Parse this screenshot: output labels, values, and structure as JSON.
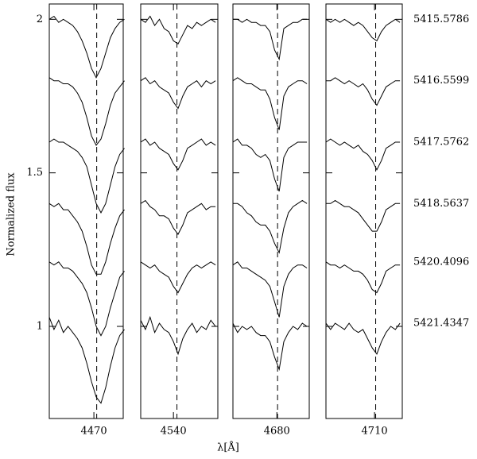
{
  "xlabel": "λ[Å]",
  "ylabel": "Normalized flux",
  "chart_data": [
    {
      "type": "line",
      "color": "#000000",
      "marker_x": 4471.2,
      "xlim": [
        4451,
        4482.5
      ],
      "xticks": [
        4470
      ],
      "ylim": [
        0.7,
        2.05
      ],
      "yticks": [
        1,
        1.5,
        2
      ],
      "x": [
        4451,
        4453,
        4455,
        4457,
        4459,
        4461,
        4463,
        4465,
        4467,
        4469,
        4471,
        4473,
        4475,
        4477,
        4479,
        4481,
        4483
      ],
      "series": [
        {
          "values": [
            2.0,
            2.01,
            1.99,
            2.0,
            1.99,
            1.98,
            1.96,
            1.93,
            1.89,
            1.84,
            1.81,
            1.84,
            1.89,
            1.94,
            1.97,
            1.99,
            2.0
          ]
        },
        {
          "values": [
            1.81,
            1.8,
            1.8,
            1.79,
            1.79,
            1.78,
            1.76,
            1.73,
            1.68,
            1.62,
            1.59,
            1.61,
            1.66,
            1.72,
            1.76,
            1.78,
            1.8
          ]
        },
        {
          "values": [
            1.6,
            1.61,
            1.6,
            1.6,
            1.59,
            1.58,
            1.57,
            1.55,
            1.52,
            1.46,
            1.4,
            1.37,
            1.4,
            1.46,
            1.52,
            1.56,
            1.58
          ]
        },
        {
          "values": [
            1.4,
            1.39,
            1.4,
            1.38,
            1.38,
            1.36,
            1.34,
            1.31,
            1.26,
            1.2,
            1.17,
            1.17,
            1.21,
            1.27,
            1.32,
            1.36,
            1.38
          ]
        },
        {
          "values": [
            1.21,
            1.2,
            1.21,
            1.19,
            1.19,
            1.18,
            1.16,
            1.14,
            1.11,
            1.06,
            1.0,
            0.97,
            1.0,
            1.06,
            1.11,
            1.16,
            1.18
          ]
        },
        {
          "values": [
            1.03,
            0.99,
            1.02,
            0.98,
            1.0,
            0.98,
            0.96,
            0.93,
            0.88,
            0.82,
            0.77,
            0.75,
            0.8,
            0.87,
            0.93,
            0.97,
            0.99
          ]
        }
      ]
    },
    {
      "type": "line",
      "color": "#000000",
      "marker_x": 4541.5,
      "xlim": [
        4526,
        4559
      ],
      "xticks": [
        4540
      ],
      "ylim": [
        0.7,
        2.05
      ],
      "x": [
        4526,
        4528,
        4530,
        4532,
        4534,
        4536,
        4538,
        4540,
        4542,
        4544,
        4546,
        4548,
        4550,
        4552,
        4554,
        4556,
        4558
      ],
      "series": [
        {
          "values": [
            2.0,
            1.99,
            2.01,
            1.98,
            2.0,
            1.97,
            1.96,
            1.93,
            1.92,
            1.95,
            1.98,
            1.97,
            1.99,
            1.98,
            1.99,
            2.0,
            1.99
          ]
        },
        {
          "values": [
            1.8,
            1.81,
            1.79,
            1.8,
            1.78,
            1.77,
            1.76,
            1.73,
            1.71,
            1.75,
            1.78,
            1.79,
            1.8,
            1.78,
            1.8,
            1.79,
            1.8
          ]
        },
        {
          "values": [
            1.6,
            1.61,
            1.59,
            1.6,
            1.58,
            1.57,
            1.56,
            1.53,
            1.51,
            1.54,
            1.58,
            1.59,
            1.6,
            1.61,
            1.59,
            1.6,
            1.59
          ]
        },
        {
          "values": [
            1.4,
            1.41,
            1.39,
            1.38,
            1.36,
            1.36,
            1.35,
            1.32,
            1.3,
            1.33,
            1.37,
            1.38,
            1.39,
            1.4,
            1.38,
            1.39,
            1.39
          ]
        },
        {
          "values": [
            1.21,
            1.2,
            1.19,
            1.2,
            1.18,
            1.17,
            1.16,
            1.13,
            1.11,
            1.14,
            1.17,
            1.19,
            1.2,
            1.19,
            1.2,
            1.21,
            1.2
          ]
        },
        {
          "values": [
            1.02,
            0.99,
            1.03,
            0.98,
            1.01,
            0.99,
            0.98,
            0.95,
            0.91,
            0.96,
            0.99,
            1.01,
            0.98,
            1.0,
            0.99,
            1.02,
            1.0
          ]
        }
      ]
    },
    {
      "type": "line",
      "color": "#000000",
      "marker_x": 4680.3,
      "xlim": [
        4661,
        4694
      ],
      "xticks": [
        4680
      ],
      "ylim": [
        0.7,
        2.05
      ],
      "x": [
        4661,
        4663,
        4665,
        4667,
        4669,
        4671,
        4673,
        4675,
        4677,
        4679,
        4681,
        4683,
        4685,
        4687,
        4689,
        4691,
        4693
      ],
      "series": [
        {
          "values": [
            2.0,
            2.0,
            1.99,
            2.0,
            1.99,
            1.99,
            1.98,
            1.98,
            1.96,
            1.9,
            1.87,
            1.97,
            1.98,
            1.99,
            1.99,
            2.0,
            2.0
          ]
        },
        {
          "values": [
            1.8,
            1.81,
            1.8,
            1.79,
            1.79,
            1.78,
            1.77,
            1.77,
            1.74,
            1.68,
            1.64,
            1.75,
            1.78,
            1.79,
            1.8,
            1.8,
            1.79
          ]
        },
        {
          "values": [
            1.6,
            1.61,
            1.59,
            1.59,
            1.58,
            1.56,
            1.55,
            1.56,
            1.54,
            1.48,
            1.44,
            1.55,
            1.58,
            1.59,
            1.6,
            1.6,
            1.6
          ]
        },
        {
          "values": [
            1.4,
            1.4,
            1.39,
            1.37,
            1.36,
            1.34,
            1.33,
            1.33,
            1.31,
            1.27,
            1.24,
            1.32,
            1.37,
            1.39,
            1.4,
            1.41,
            1.4
          ]
        },
        {
          "values": [
            1.2,
            1.21,
            1.19,
            1.19,
            1.18,
            1.17,
            1.16,
            1.15,
            1.13,
            1.08,
            1.03,
            1.13,
            1.17,
            1.19,
            1.2,
            1.2,
            1.19
          ]
        },
        {
          "values": [
            1.01,
            0.98,
            1.0,
            0.99,
            1.0,
            0.98,
            0.97,
            0.97,
            0.95,
            0.9,
            0.86,
            0.95,
            0.98,
            1.0,
            0.99,
            1.01,
            1.0
          ]
        }
      ]
    },
    {
      "type": "line",
      "color": "#000000",
      "marker_x": 4710.5,
      "xlim": [
        4689,
        4722
      ],
      "xticks": [
        4710
      ],
      "ylim": [
        0.7,
        2.05
      ],
      "x": [
        4689,
        4691,
        4693,
        4695,
        4697,
        4699,
        4701,
        4703,
        4705,
        4707,
        4709,
        4711,
        4713,
        4715,
        4717,
        4719,
        4721
      ],
      "series": [
        {
          "name": "5415.5786",
          "values": [
            2.0,
            1.99,
            2.0,
            1.99,
            2.0,
            1.99,
            1.98,
            1.99,
            1.98,
            1.96,
            1.94,
            1.93,
            1.96,
            1.98,
            1.99,
            2.0,
            1.99
          ]
        },
        {
          "name": "5416.5599",
          "values": [
            1.8,
            1.8,
            1.81,
            1.8,
            1.79,
            1.8,
            1.79,
            1.78,
            1.79,
            1.77,
            1.74,
            1.72,
            1.75,
            1.78,
            1.79,
            1.8,
            1.8
          ]
        },
        {
          "name": "5417.5762",
          "values": [
            1.6,
            1.61,
            1.6,
            1.59,
            1.6,
            1.59,
            1.58,
            1.59,
            1.57,
            1.56,
            1.54,
            1.51,
            1.54,
            1.58,
            1.59,
            1.6,
            1.6
          ]
        },
        {
          "name": "5418.5637",
          "values": [
            1.4,
            1.4,
            1.41,
            1.4,
            1.39,
            1.39,
            1.38,
            1.37,
            1.35,
            1.33,
            1.31,
            1.31,
            1.34,
            1.38,
            1.39,
            1.4,
            1.4
          ]
        },
        {
          "name": "5420.4096",
          "values": [
            1.21,
            1.2,
            1.2,
            1.19,
            1.2,
            1.19,
            1.18,
            1.18,
            1.17,
            1.15,
            1.12,
            1.11,
            1.14,
            1.18,
            1.19,
            1.2,
            1.2
          ]
        },
        {
          "name": "5421.4347",
          "values": [
            1.01,
            0.99,
            1.01,
            1.0,
            0.99,
            1.01,
            0.99,
            0.98,
            0.99,
            0.96,
            0.93,
            0.91,
            0.95,
            0.98,
            1.0,
            0.99,
            1.01
          ]
        }
      ]
    }
  ]
}
